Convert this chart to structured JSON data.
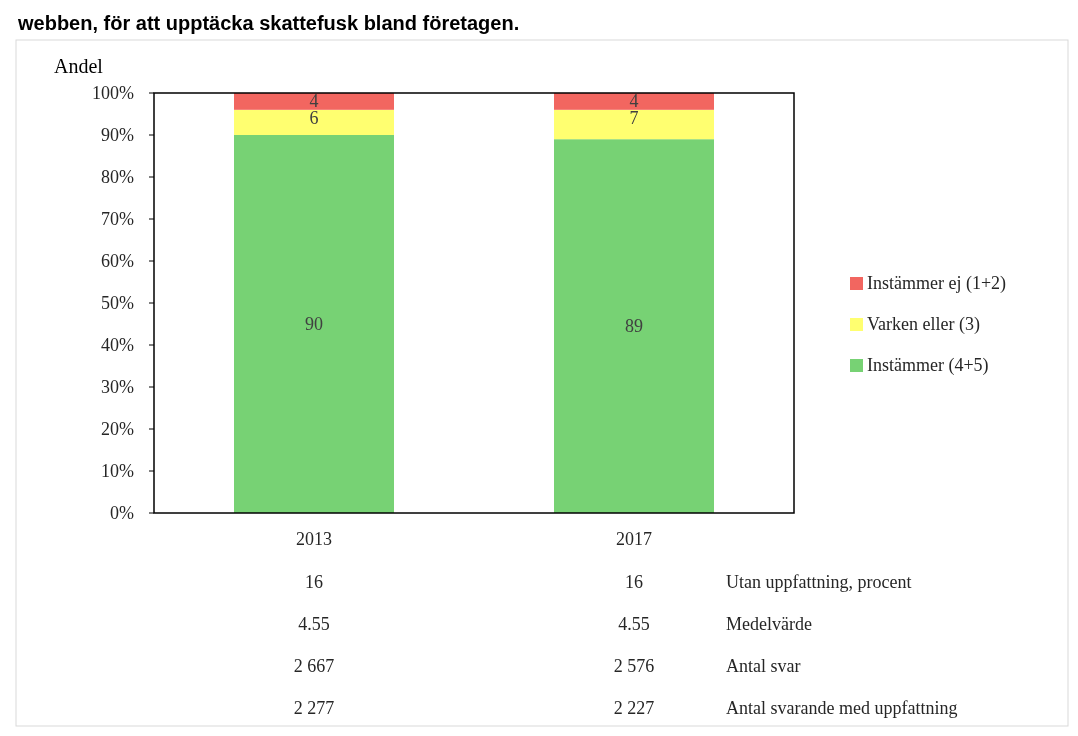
{
  "chart_data": {
    "type": "bar",
    "stacked": true,
    "title": "webben, för att upptäcka skattefusk bland företagen.",
    "ylabel": "Andel",
    "categories": [
      "2013",
      "2017"
    ],
    "series": [
      {
        "name": "Instämmer (4+5)",
        "color": "#77d274",
        "values": [
          90,
          89
        ]
      },
      {
        "name": "Varken eller (3)",
        "color": "#ffff70",
        "values": [
          6,
          7
        ]
      },
      {
        "name": "Instämmer ej (1+2)",
        "color": "#f26660",
        "values": [
          4,
          4
        ]
      }
    ],
    "ylim": [
      0,
      100
    ],
    "yticks": [
      {
        "value": 0,
        "label": "0%"
      },
      {
        "value": 10,
        "label": "10%"
      },
      {
        "value": 20,
        "label": "20%"
      },
      {
        "value": 30,
        "label": "30%"
      },
      {
        "value": 40,
        "label": "40%"
      },
      {
        "value": 50,
        "label": "50%"
      },
      {
        "value": 60,
        "label": "60%"
      },
      {
        "value": 70,
        "label": "70%"
      },
      {
        "value": 80,
        "label": "80%"
      },
      {
        "value": 90,
        "label": "90%"
      },
      {
        "value": 100,
        "label": "100%"
      }
    ],
    "data_labels": true,
    "legend": "right",
    "grid": false,
    "annotations": [
      "16",
      "16",
      "Utan uppfattning, procent",
      "4.55",
      "4.55",
      "Medelvärde",
      "2 667",
      "2 576",
      "Antal svar",
      "2 277",
      "2 227",
      "Antal svarande med uppfattning"
    ]
  }
}
